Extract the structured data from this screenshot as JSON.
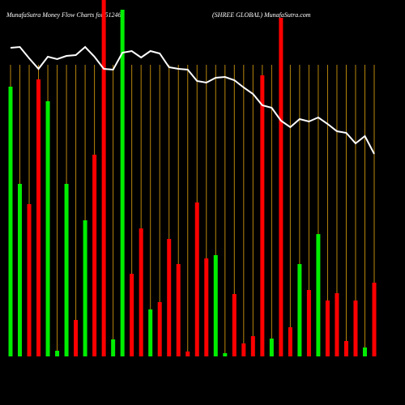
{
  "chart_data": {
    "type": "bar",
    "title": "MunafaSutra  Money Flow  Charts for 512463",
    "subtitle": "(SHREE GLOBAL) MunafaSutra.com",
    "categories": [
      null,
      null,
      null,
      null,
      null,
      null,
      null,
      null,
      null,
      null,
      null,
      null,
      null,
      null,
      null,
      null,
      null,
      null,
      null,
      null,
      null,
      null,
      null,
      null,
      null,
      null,
      null,
      null,
      null,
      null,
      null,
      null,
      null,
      null,
      null,
      null,
      null,
      null,
      null,
      null
    ],
    "values": [
      333,
      213,
      188,
      342,
      315,
      7,
      213,
      45,
      168,
      249,
      440,
      21,
      428,
      102,
      158,
      58,
      67,
      145,
      114,
      6,
      190,
      121,
      125,
      4,
      77,
      16,
      25,
      347,
      22,
      418,
      36,
      114,
      82,
      151,
      69,
      78,
      19,
      69,
      11,
      91
    ],
    "colors": [
      "#00ee00",
      "#00ee00",
      "#ff0000",
      "#ff0000",
      "#00ee00",
      "#00ee00",
      "#00ee00",
      "#ff0000",
      "#00ee00",
      "#ff0000",
      "#ff0000",
      "#00ee00",
      "#00ee00",
      "#ff0000",
      "#ff0000",
      "#00ee00",
      "#ff0000",
      "#ff0000",
      "#ff0000",
      "#ff0000",
      "#ff0000",
      "#ff0000",
      "#00ee00",
      "#00ee00",
      "#ff0000",
      "#ff0000",
      "#ff0000",
      "#ff0000",
      "#00ee00",
      "#ff0000",
      "#ff0000",
      "#00ee00",
      "#ff0000",
      "#00ee00",
      "#ff0000",
      "#ff0000",
      "#ff0000",
      "#ff0000",
      "#00ee00",
      "#ff0000"
    ],
    "line": {
      "color": "#ffffff",
      "values": [
        381,
        382,
        368,
        355,
        370,
        367,
        371,
        372,
        382,
        370,
        355,
        354,
        375,
        377,
        369,
        377,
        374,
        357,
        355,
        354,
        340,
        338,
        344,
        345,
        341,
        332,
        324,
        310,
        307,
        291,
        283,
        293,
        290,
        295,
        287,
        278,
        276,
        263,
        272,
        250
      ]
    },
    "separator_color": "#b8860b",
    "ylim": [
      0,
      440
    ]
  }
}
